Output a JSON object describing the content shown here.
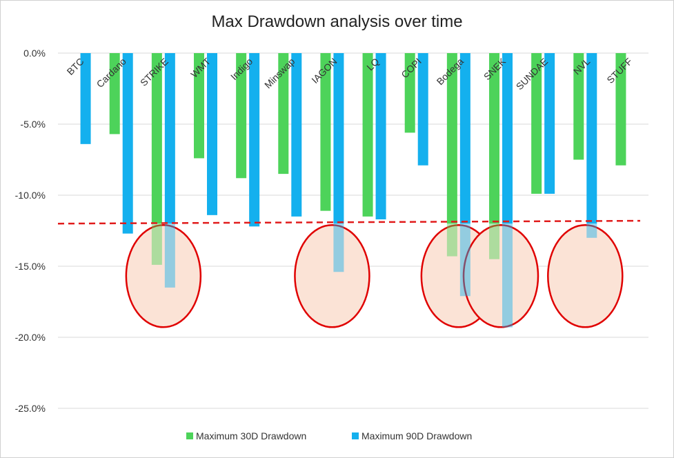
{
  "chart_data": {
    "type": "bar",
    "title": "Max Drawdown analysis over time",
    "categories": [
      "BTC",
      "Cardano",
      "STRIKE",
      "WMT",
      "Indigo",
      "Minswap",
      "IAGON",
      "LQ",
      "COPI",
      "Bodega",
      "SNEK",
      "SUNDAE",
      "NVL",
      "STUFF"
    ],
    "series": [
      {
        "name": "Maximum 30D Drawdown",
        "color": "#4dd35a",
        "values": [
          0,
          -5.7,
          -14.9,
          -7.4,
          -8.8,
          -8.5,
          -11.1,
          -11.5,
          -5.6,
          -14.3,
          -14.5,
          -9.9,
          -7.5,
          -7.9
        ]
      },
      {
        "name": "Maximum 90D Drawdown",
        "color": "#14b0ee",
        "values": [
          -6.4,
          -12.7,
          -16.5,
          -11.4,
          -12.2,
          -11.5,
          -15.4,
          -11.7,
          -7.9,
          -17.1,
          -19.3,
          -9.9,
          -13.0,
          0
        ]
      }
    ],
    "ylim": [
      -25,
      0
    ],
    "yticks": [
      0,
      -5,
      -10,
      -15,
      -20,
      -25
    ],
    "ytick_labels": [
      "0.0%",
      "-5.0%",
      "-10.0%",
      "-15.0%",
      "-20.0%",
      "-25.0%"
    ],
    "grid": true,
    "legend_position": "bottom",
    "threshold_line": {
      "start": -12.0,
      "end": -11.8,
      "color": "#e11b1b",
      "style": "dashed"
    },
    "highlighted_categories": [
      "STRIKE",
      "IAGON",
      "Bodega",
      "SNEK",
      "NVL"
    ],
    "highlight_color": "#fbe3d6",
    "highlight_outline": "#e00000"
  }
}
